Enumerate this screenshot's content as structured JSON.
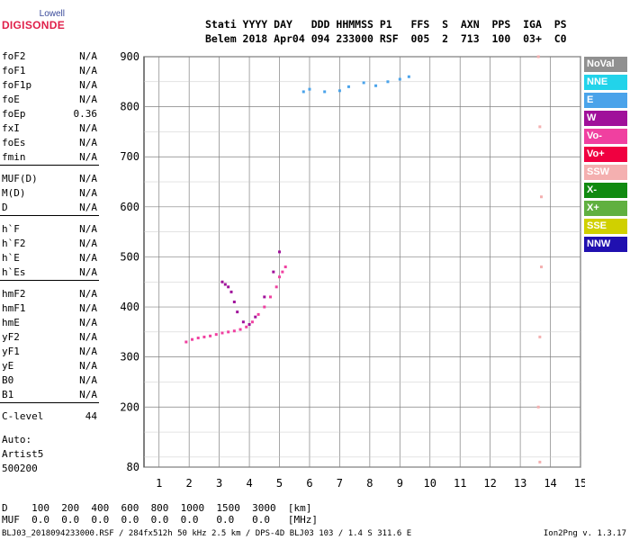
{
  "logo": {
    "line1": "Lowell",
    "line2": "DIGISONDE"
  },
  "header": {
    "line1": "Stati YYYY DAY   DDD HHMMSS P1   FFS  S  AXN  PPS  IGA  PS",
    "line2": "Belem 2018 Apr04 094 233000 RSF  005  2  713  100  03+  C0"
  },
  "params_group1": [
    {
      "name": "foF2",
      "value": "N/A"
    },
    {
      "name": "foF1",
      "value": "N/A"
    },
    {
      "name": "foF1p",
      "value": "N/A"
    },
    {
      "name": "foE",
      "value": "N/A"
    },
    {
      "name": "foEp",
      "value": "0.36"
    },
    {
      "name": "fxI",
      "value": "N/A"
    },
    {
      "name": "foEs",
      "value": "N/A"
    },
    {
      "name": "fmin",
      "value": "N/A"
    }
  ],
  "params_group2": [
    {
      "name": "MUF(D)",
      "value": "N/A"
    },
    {
      "name": "M(D)",
      "value": "N/A"
    },
    {
      "name": "D",
      "value": "N/A"
    }
  ],
  "params_group3": [
    {
      "name": "h`F",
      "value": "N/A"
    },
    {
      "name": "h`F2",
      "value": "N/A"
    },
    {
      "name": "h`E",
      "value": "N/A"
    },
    {
      "name": "h`Es",
      "value": "N/A"
    }
  ],
  "params_group4": [
    {
      "name": "hmF2",
      "value": "N/A"
    },
    {
      "name": "hmF1",
      "value": "N/A"
    },
    {
      "name": "hmE",
      "value": "N/A"
    },
    {
      "name": "yF2",
      "value": "N/A"
    },
    {
      "name": "yF1",
      "value": "N/A"
    },
    {
      "name": "yE",
      "value": "N/A"
    },
    {
      "name": "B0",
      "value": "N/A"
    },
    {
      "name": "B1",
      "value": "N/A"
    }
  ],
  "params_group5": [
    {
      "name": "C-level",
      "value": "44"
    }
  ],
  "auto": {
    "line1": "Auto:",
    "line2": "Artist5",
    "line3": "500200"
  },
  "legend": [
    {
      "label": "NoVal",
      "color": "#909090"
    },
    {
      "label": "NNE",
      "color": "#22d3ea"
    },
    {
      "label": "E",
      "color": "#4aa3ea"
    },
    {
      "label": "W",
      "color": "#a0109a"
    },
    {
      "label": "Vo-",
      "color": "#f040a0"
    },
    {
      "label": "Vo+",
      "color": "#f00040"
    },
    {
      "label": "SSW",
      "color": "#f4b0b0"
    },
    {
      "label": "X-",
      "color": "#108a10"
    },
    {
      "label": "X+",
      "color": "#60b040"
    },
    {
      "label": "SSE",
      "color": "#d0d000"
    },
    {
      "label": "NNW",
      "color": "#2010b0"
    }
  ],
  "footer": {
    "line1": "D    100  200  400  600  800  1000  1500  3000  [km]",
    "line2": "MUF  0.0  0.0  0.0  0.0  0.0  0.0   0.0   0.0   [MHz]",
    "line3": "BLJ03_2018094233000.RSF / 284fx512h 50 kHz 2.5 km / DPS-4D BLJ03 103 / 1.4 S 311.6 E",
    "version": "Ion2Png v. 1.3.17"
  },
  "chart_data": {
    "type": "scatter",
    "title": "",
    "xlabel": "",
    "ylabel": "",
    "xlim": [
      0.5,
      15
    ],
    "ylim": [
      80,
      900
    ],
    "x_ticks": [
      1,
      2,
      3,
      4,
      5,
      6,
      7,
      8,
      9,
      10,
      11,
      12,
      13,
      14,
      15
    ],
    "y_ticks": [
      80,
      200,
      300,
      400,
      500,
      600,
      700,
      800,
      900
    ],
    "grid": true,
    "legend_position": "right",
    "series": [
      {
        "name": "E",
        "traces": [
          {
            "x": [
              5.8,
              6.0,
              6.5,
              7.0,
              7.3,
              7.8,
              8.2,
              8.6,
              9.0,
              9.3
            ],
            "y": [
              830,
              835,
              830,
              832,
              840,
              848,
              842,
              850,
              855,
              860
            ]
          }
        ]
      },
      {
        "name": "Vo-",
        "traces": [
          {
            "x": [
              1.9,
              2.1,
              2.3,
              2.5,
              2.7,
              2.9,
              3.1,
              3.3,
              3.5,
              3.7,
              3.9,
              4.1,
              4.3,
              4.5,
              4.7,
              4.9,
              5.0,
              5.1,
              5.2
            ],
            "y": [
              330,
              335,
              338,
              340,
              342,
              345,
              348,
              350,
              352,
              355,
              360,
              370,
              385,
              400,
              420,
              440,
              460,
              470,
              480
            ]
          }
        ]
      },
      {
        "name": "SSW",
        "traces": [
          {
            "x": [
              13.6,
              13.65,
              13.7,
              13.7,
              13.65,
              13.6,
              13.65
            ],
            "y": [
              900,
              760,
              620,
              480,
              340,
              200,
              90
            ]
          }
        ]
      },
      {
        "name": "W",
        "traces": [
          {
            "x": [
              3.1,
              3.2,
              3.3,
              3.4,
              3.5,
              3.6,
              3.8,
              4.0,
              4.2,
              4.5,
              4.8,
              5.0
            ],
            "y": [
              450,
              445,
              440,
              430,
              410,
              390,
              370,
              365,
              380,
              420,
              470,
              510
            ]
          }
        ]
      }
    ]
  }
}
